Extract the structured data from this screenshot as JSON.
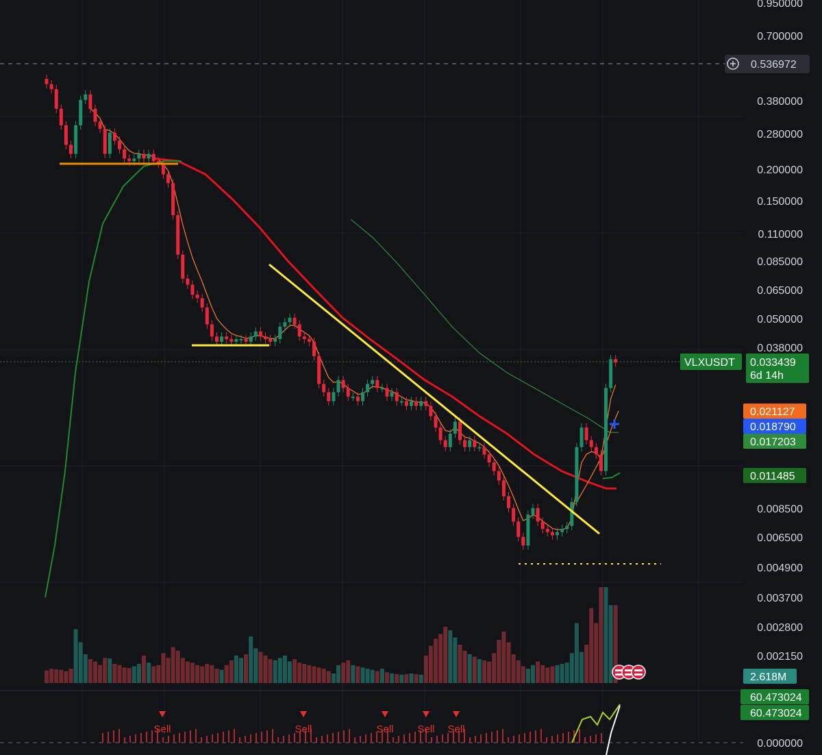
{
  "chart_data": {
    "type": "candlestick",
    "symbol": "VLXUSDT",
    "scale": "log",
    "grid": true,
    "price_axis_ticks": [
      "0.950000",
      "0.700000",
      "0.380000",
      "0.280000",
      "0.200000",
      "0.150000",
      "0.110000",
      "0.085000",
      "0.065000",
      "0.050000",
      "0.038000",
      "0.008500",
      "0.006500",
      "0.004900",
      "0.003700",
      "0.002800",
      "0.002150"
    ],
    "indicator_axis_ticks": [
      "0.000000"
    ],
    "crosshair": {
      "price": "0.536972"
    },
    "last_price": {
      "symbol": "VLXUSDT",
      "price": "0.033439",
      "countdown": "6d 14h",
      "color": "#1a7f2e"
    },
    "ma_labels": [
      {
        "value": "0.021127",
        "color": "#f26b1d",
        "series": "ema-fast"
      },
      {
        "value": "0.018790",
        "color": "#2457f5",
        "series": "marker"
      },
      {
        "value": "0.017203",
        "color": "#2e8b3a",
        "series": "sma-green-thin"
      },
      {
        "value": "0.011485",
        "color": "#1a6b1f",
        "series": "sma-green-thick"
      }
    ],
    "volume_label": {
      "value": "2.618M",
      "color": "#2a8a7f"
    },
    "indicator_labels": [
      "60.473024",
      "60.473024"
    ],
    "sell_signals": [
      "Sell",
      "Sell",
      "Sell",
      "Sell",
      "Sell"
    ],
    "candles_close": [
      0.44,
      0.42,
      0.35,
      0.3,
      0.25,
      0.23,
      0.3,
      0.38,
      0.4,
      0.35,
      0.31,
      0.29,
      0.23,
      0.28,
      0.26,
      0.24,
      0.22,
      0.215,
      0.22,
      0.23,
      0.22,
      0.23,
      0.215,
      0.21,
      0.19,
      0.175,
      0.13,
      0.09,
      0.072,
      0.068,
      0.062,
      0.06,
      0.055,
      0.047,
      0.042,
      0.04,
      0.042,
      0.041,
      0.04,
      0.041,
      0.041,
      0.04,
      0.042,
      0.044,
      0.042,
      0.041,
      0.04,
      0.041,
      0.046,
      0.048,
      0.05,
      0.047,
      0.042,
      0.041,
      0.04,
      0.035,
      0.027,
      0.025,
      0.023,
      0.025,
      0.028,
      0.026,
      0.024,
      0.024,
      0.023,
      0.025,
      0.027,
      0.028,
      0.026,
      0.026,
      0.024,
      0.025,
      0.023,
      0.023,
      0.022,
      0.023,
      0.022,
      0.023,
      0.022,
      0.02,
      0.018,
      0.016,
      0.015,
      0.017,
      0.019,
      0.016,
      0.015,
      0.016,
      0.015,
      0.015,
      0.014,
      0.013,
      0.012,
      0.011,
      0.0095,
      0.0085,
      0.0075,
      0.0065,
      0.006,
      0.008,
      0.0085,
      0.0075,
      0.007,
      0.0068,
      0.0066,
      0.0068,
      0.007,
      0.0072,
      0.009,
      0.015,
      0.018,
      0.016,
      0.015,
      0.014,
      0.012,
      0.026,
      0.034,
      0.033
    ],
    "volume": [
      0.21,
      0.24,
      0.23,
      0.22,
      0.2,
      0.24,
      0.9,
      0.68,
      0.48,
      0.4,
      0.36,
      0.3,
      0.42,
      0.41,
      0.32,
      0.3,
      0.26,
      0.25,
      0.28,
      0.32,
      0.46,
      0.34,
      0.28,
      0.3,
      0.5,
      0.42,
      0.6,
      0.54,
      0.42,
      0.36,
      0.34,
      0.3,
      0.28,
      0.32,
      0.3,
      0.24,
      0.22,
      0.3,
      0.38,
      0.46,
      0.42,
      0.48,
      0.78,
      0.58,
      0.52,
      0.46,
      0.4,
      0.38,
      0.42,
      0.46,
      0.36,
      0.4,
      0.34,
      0.32,
      0.3,
      0.28,
      0.26,
      0.24,
      0.2,
      0.16,
      0.3,
      0.34,
      0.38,
      0.3,
      0.28,
      0.26,
      0.24,
      0.22,
      0.2,
      0.24,
      0.18,
      0.16,
      0.15,
      0.14,
      0.15,
      0.16,
      0.15,
      0.14,
      0.46,
      0.62,
      0.74,
      0.82,
      0.94,
      0.88,
      0.76,
      0.64,
      0.54,
      0.48,
      0.44,
      0.4,
      0.38,
      0.36,
      0.5,
      0.72,
      0.86,
      0.68,
      0.48,
      0.38,
      0.28,
      0.24,
      0.3,
      0.36,
      0.3,
      0.26,
      0.28,
      0.3,
      0.32,
      0.34,
      0.5,
      1.0,
      0.52,
      0.64,
      1.25,
      1.0,
      1.6,
      1.6,
      1.3,
      1.3
    ],
    "annotations": [
      {
        "type": "horizontal-support",
        "color": "#f08c00",
        "level": 0.21
      },
      {
        "type": "horizontal-support",
        "color": "#ffeb3b",
        "level": 0.04
      },
      {
        "type": "descending-trendline",
        "color": "#ffeb3b",
        "from": 0.085,
        "to": 0.0066
      },
      {
        "type": "dotted-support",
        "color": "#ffeb3b",
        "level": 0.0049
      }
    ]
  }
}
